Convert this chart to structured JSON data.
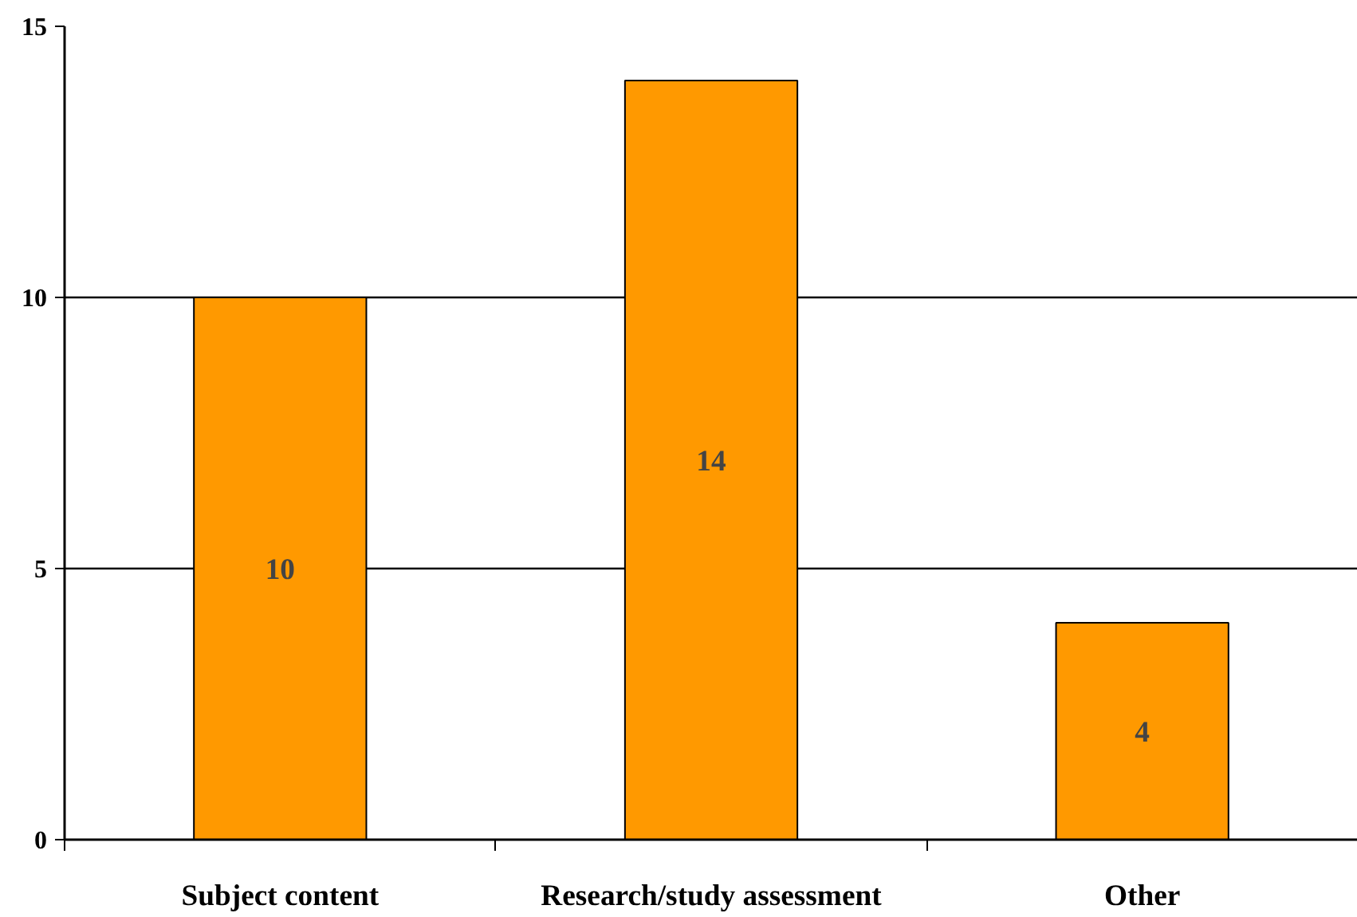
{
  "chart_data": {
    "type": "bar",
    "categories": [
      "Subject content",
      "Research/study assessment",
      "Other"
    ],
    "values": [
      10,
      14,
      4
    ],
    "color": "#ff9900",
    "ylim": [
      0,
      15
    ],
    "yticks": [
      0,
      5,
      10,
      15
    ],
    "grid": "y",
    "data_labels": true
  }
}
